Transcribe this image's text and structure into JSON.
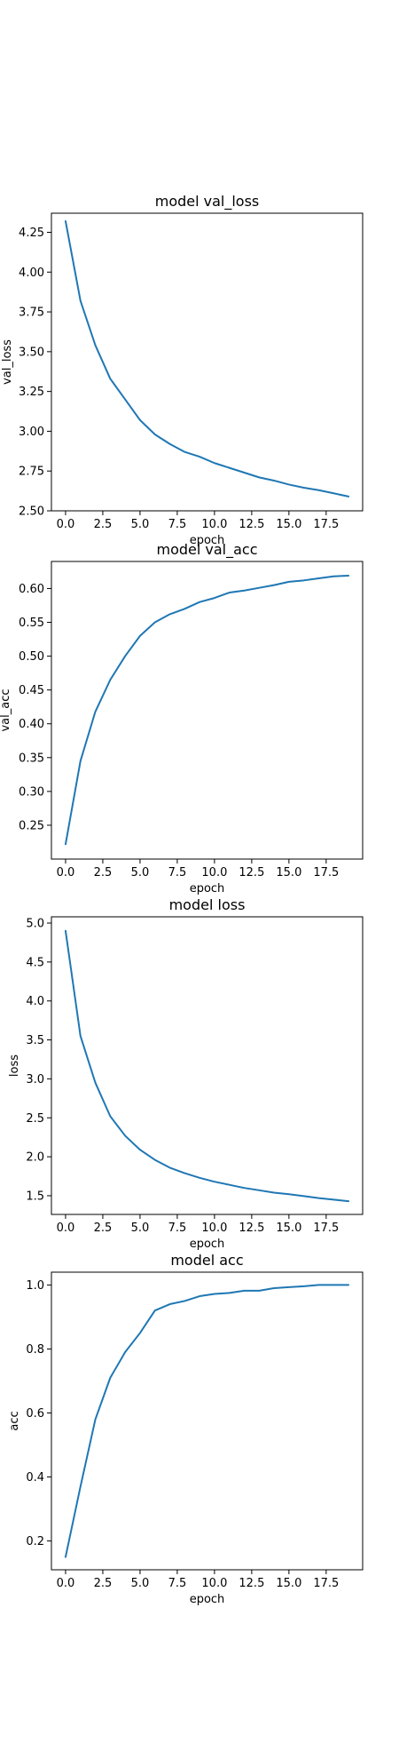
{
  "chart_data": [
    {
      "type": "line",
      "title": "model val_loss",
      "xlabel": "epoch",
      "ylabel": "val_loss",
      "x": [
        0,
        1,
        2,
        3,
        4,
        5,
        6,
        7,
        8,
        9,
        10,
        11,
        12,
        13,
        14,
        15,
        16,
        17,
        18,
        19
      ],
      "xlim": [
        -0.95,
        19.95
      ],
      "ylim": [
        2.5,
        4.37
      ],
      "xticks": [
        "0.0",
        "2.5",
        "5.0",
        "7.5",
        "10.0",
        "12.5",
        "15.0",
        "17.5"
      ],
      "xtick_values": [
        0,
        2.5,
        5,
        7.5,
        10,
        12.5,
        15,
        17.5
      ],
      "yticks": [
        "2.50",
        "2.75",
        "3.00",
        "3.25",
        "3.50",
        "3.75",
        "4.00",
        "4.25"
      ],
      "ytick_values": [
        2.5,
        2.75,
        3.0,
        3.25,
        3.5,
        3.75,
        4.0,
        4.25
      ],
      "grid": false,
      "series": [
        {
          "values": [
            4.32,
            3.82,
            3.54,
            3.33,
            3.2,
            3.07,
            2.98,
            2.92,
            2.87,
            2.84,
            2.8,
            2.77,
            2.74,
            2.71,
            2.69,
            2.665,
            2.645,
            2.63,
            2.61,
            2.59
          ],
          "color": "#1f77b4"
        }
      ]
    },
    {
      "type": "line",
      "title": "model val_acc",
      "xlabel": "epoch",
      "ylabel": "val_acc",
      "x": [
        0,
        1,
        2,
        3,
        4,
        5,
        6,
        7,
        8,
        9,
        10,
        11,
        12,
        13,
        14,
        15,
        16,
        17,
        18,
        19
      ],
      "xlim": [
        -0.95,
        19.95
      ],
      "ylim": [
        0.2,
        0.64
      ],
      "xticks": [
        "0.0",
        "2.5",
        "5.0",
        "7.5",
        "10.0",
        "12.5",
        "15.0",
        "17.5"
      ],
      "xtick_values": [
        0,
        2.5,
        5,
        7.5,
        10,
        12.5,
        15,
        17.5
      ],
      "yticks": [
        "0.25",
        "0.30",
        "0.35",
        "0.40",
        "0.45",
        "0.50",
        "0.55",
        "0.60"
      ],
      "ytick_values": [
        0.25,
        0.3,
        0.35,
        0.4,
        0.45,
        0.5,
        0.55,
        0.6
      ],
      "grid": false,
      "series": [
        {
          "values": [
            0.222,
            0.345,
            0.418,
            0.465,
            0.5,
            0.53,
            0.55,
            0.562,
            0.57,
            0.58,
            0.586,
            0.594,
            0.597,
            0.601,
            0.605,
            0.61,
            0.612,
            0.615,
            0.618,
            0.619
          ],
          "color": "#1f77b4"
        }
      ]
    },
    {
      "type": "line",
      "title": "model loss",
      "xlabel": "epoch",
      "ylabel": "loss",
      "x": [
        0,
        1,
        2,
        3,
        4,
        5,
        6,
        7,
        8,
        9,
        10,
        11,
        12,
        13,
        14,
        15,
        16,
        17,
        18,
        19
      ],
      "xlim": [
        -0.95,
        19.95
      ],
      "ylim": [
        1.26,
        5.08
      ],
      "xticks": [
        "0.0",
        "2.5",
        "5.0",
        "7.5",
        "10.0",
        "12.5",
        "15.0",
        "17.5"
      ],
      "xtick_values": [
        0,
        2.5,
        5,
        7.5,
        10,
        12.5,
        15,
        17.5
      ],
      "yticks": [
        "1.5",
        "2.0",
        "2.5",
        "3.0",
        "3.5",
        "4.0",
        "4.5",
        "5.0"
      ],
      "ytick_values": [
        1.5,
        2.0,
        2.5,
        3.0,
        3.5,
        4.0,
        4.5,
        5.0
      ],
      "grid": false,
      "series": [
        {
          "values": [
            4.9,
            3.55,
            2.95,
            2.52,
            2.27,
            2.09,
            1.96,
            1.86,
            1.79,
            1.73,
            1.68,
            1.64,
            1.6,
            1.57,
            1.54,
            1.52,
            1.495,
            1.47,
            1.45,
            1.43
          ],
          "color": "#1f77b4"
        }
      ]
    },
    {
      "type": "line",
      "title": "model acc",
      "xlabel": "epoch",
      "ylabel": "acc",
      "x": [
        0,
        1,
        2,
        3,
        4,
        5,
        6,
        7,
        8,
        9,
        10,
        11,
        12,
        13,
        14,
        15,
        16,
        17,
        18,
        19
      ],
      "xlim": [
        -0.95,
        19.95
      ],
      "ylim": [
        0.11,
        1.04
      ],
      "xticks": [
        "0.0",
        "2.5",
        "5.0",
        "7.5",
        "10.0",
        "12.5",
        "15.0",
        "17.5"
      ],
      "xtick_values": [
        0,
        2.5,
        5,
        7.5,
        10,
        12.5,
        15,
        17.5
      ],
      "yticks": [
        "0.2",
        "0.4",
        "0.6",
        "0.8",
        "1.0"
      ],
      "ytick_values": [
        0.2,
        0.4,
        0.6,
        0.8,
        1.0
      ],
      "grid": false,
      "series": [
        {
          "values": [
            0.15,
            0.37,
            0.58,
            0.71,
            0.79,
            0.85,
            0.92,
            0.94,
            0.95,
            0.965,
            0.972,
            0.975,
            0.982,
            0.982,
            0.99,
            0.993,
            0.996,
            1.0,
            1.0,
            1.0
          ],
          "color": "#1f77b4"
        }
      ]
    }
  ]
}
